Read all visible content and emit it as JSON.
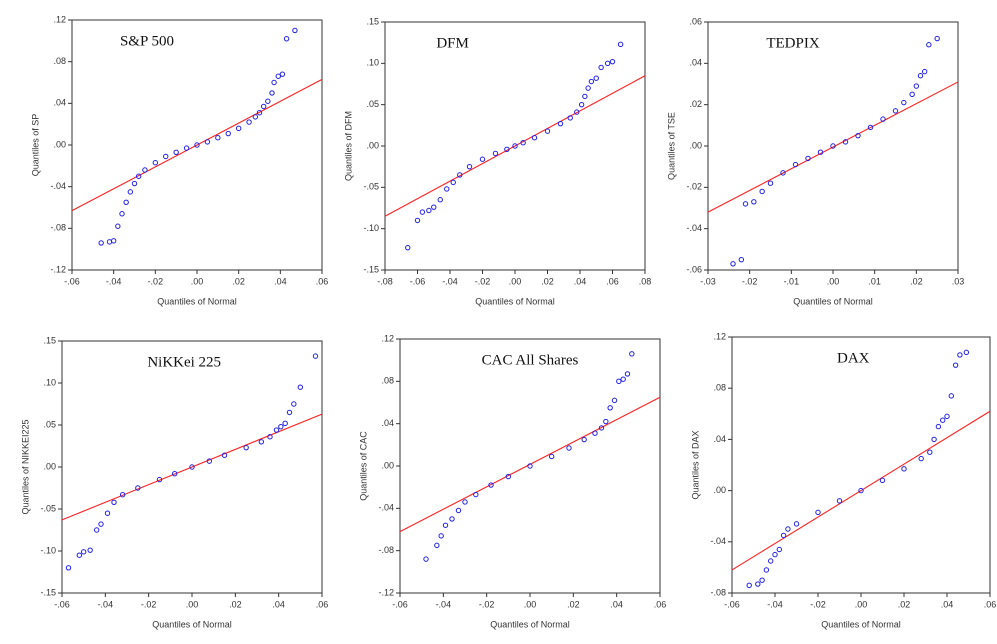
{
  "chart_data": [
    {
      "type": "scatter",
      "title": "S&P 500",
      "xlabel": "Quantiles of Normal",
      "ylabel": "Quantiles of SP",
      "color": "#2020e8",
      "x": [
        -0.046,
        -0.042,
        -0.04,
        -0.038,
        -0.036,
        -0.034,
        -0.032,
        -0.03,
        -0.028,
        -0.025,
        -0.02,
        -0.015,
        -0.01,
        -0.005,
        0,
        0.005,
        0.01,
        0.015,
        0.02,
        0.025,
        0.028,
        0.03,
        0.032,
        0.034,
        0.036,
        0.037,
        0.039,
        0.041,
        0.043,
        0.047
      ],
      "y": [
        -0.094,
        -0.093,
        -0.092,
        -0.078,
        -0.066,
        -0.055,
        -0.045,
        -0.037,
        -0.03,
        -0.024,
        -0.017,
        -0.011,
        -0.007,
        -0.003,
        0,
        0.003,
        0.007,
        0.011,
        0.016,
        0.022,
        0.027,
        0.031,
        0.037,
        0.042,
        0.05,
        0.06,
        0.066,
        0.068,
        0.102,
        0.11
      ],
      "reference_line": {
        "x": [
          -0.06,
          0.06
        ],
        "y": [
          -0.063,
          0.063
        ],
        "color": "#ff2020"
      },
      "xlim": [
        -0.06,
        0.06
      ],
      "ylim": [
        -0.12,
        0.12
      ],
      "xticks": [
        {
          "value": -0.06,
          "label": "-.06"
        },
        {
          "value": -0.04,
          "label": "-.04"
        },
        {
          "value": -0.02,
          "label": "-.02"
        },
        {
          "value": 0,
          "label": ".00"
        },
        {
          "value": 0.02,
          "label": ".02"
        },
        {
          "value": 0.04,
          "label": ".04"
        },
        {
          "value": 0.06,
          "label": ".06"
        }
      ],
      "yticks": [
        {
          "value": -0.12,
          "label": "-.12"
        },
        {
          "value": -0.08,
          "label": "-.08"
        },
        {
          "value": -0.04,
          "label": "-.04"
        },
        {
          "value": 0,
          "label": ".00"
        },
        {
          "value": 0.04,
          "label": ".04"
        },
        {
          "value": 0.08,
          "label": ".08"
        },
        {
          "value": 0.12,
          "label": ".12"
        }
      ]
    },
    {
      "type": "scatter",
      "title": "DFM",
      "xlabel": "Quantiles of Normal",
      "ylabel": "Quantiles of DFM",
      "color": "#2020e8",
      "x": [
        -0.066,
        -0.06,
        -0.057,
        -0.053,
        -0.05,
        -0.046,
        -0.042,
        -0.038,
        -0.034,
        -0.028,
        -0.02,
        -0.012,
        -0.005,
        0,
        0.005,
        0.012,
        0.02,
        0.028,
        0.034,
        0.038,
        0.041,
        0.043,
        0.045,
        0.047,
        0.05,
        0.053,
        0.057,
        0.06,
        0.065
      ],
      "y": [
        -0.123,
        -0.09,
        -0.08,
        -0.078,
        -0.074,
        -0.065,
        -0.052,
        -0.044,
        -0.035,
        -0.025,
        -0.016,
        -0.009,
        -0.004,
        0,
        0.004,
        0.01,
        0.018,
        0.027,
        0.034,
        0.041,
        0.05,
        0.06,
        0.07,
        0.078,
        0.082,
        0.095,
        0.1,
        0.102,
        0.123
      ],
      "reference_line": {
        "x": [
          -0.08,
          0.08
        ],
        "y": [
          -0.085,
          0.085
        ],
        "color": "#ff2020"
      },
      "xlim": [
        -0.08,
        0.08
      ],
      "ylim": [
        -0.15,
        0.15
      ],
      "xticks": [
        {
          "value": -0.08,
          "label": "-.08"
        },
        {
          "value": -0.06,
          "label": "-.06"
        },
        {
          "value": -0.04,
          "label": "-.04"
        },
        {
          "value": -0.02,
          "label": "-.02"
        },
        {
          "value": 0,
          "label": ".00"
        },
        {
          "value": 0.02,
          "label": ".02"
        },
        {
          "value": 0.04,
          "label": ".04"
        },
        {
          "value": 0.06,
          "label": ".06"
        },
        {
          "value": 0.08,
          "label": ".08"
        }
      ],
      "yticks": [
        {
          "value": -0.15,
          "label": "-.15"
        },
        {
          "value": -0.1,
          "label": "-.10"
        },
        {
          "value": -0.05,
          "label": "-.05"
        },
        {
          "value": 0,
          "label": ".00"
        },
        {
          "value": 0.05,
          "label": ".05"
        },
        {
          "value": 0.1,
          "label": ".10"
        },
        {
          "value": 0.15,
          "label": ".15"
        }
      ]
    },
    {
      "type": "scatter",
      "title": "TEDPIX",
      "xlabel": "Quantiles of Normal",
      "ylabel": "Quantiles of TSE",
      "color": "#2020e8",
      "x": [
        -0.024,
        -0.022,
        -0.021,
        -0.019,
        -0.017,
        -0.015,
        -0.012,
        -0.009,
        -0.006,
        -0.003,
        0,
        0.003,
        0.006,
        0.009,
        0.012,
        0.015,
        0.017,
        0.019,
        0.02,
        0.021,
        0.022,
        0.023,
        0.025
      ],
      "y": [
        -0.057,
        -0.055,
        -0.028,
        -0.027,
        -0.022,
        -0.018,
        -0.013,
        -0.009,
        -0.006,
        -0.003,
        0,
        0.002,
        0.005,
        0.009,
        0.013,
        0.017,
        0.021,
        0.025,
        0.029,
        0.034,
        0.036,
        0.049,
        0.052
      ],
      "reference_line": {
        "x": [
          -0.03,
          0.03
        ],
        "y": [
          -0.032,
          0.031
        ],
        "color": "#ff2020"
      },
      "xlim": [
        -0.03,
        0.03
      ],
      "ylim": [
        -0.06,
        0.06
      ],
      "xticks": [
        {
          "value": -0.03,
          "label": "-.03"
        },
        {
          "value": -0.02,
          "label": "-.02"
        },
        {
          "value": -0.01,
          "label": "-.01"
        },
        {
          "value": 0,
          "label": ".00"
        },
        {
          "value": 0.01,
          "label": ".01"
        },
        {
          "value": 0.02,
          "label": ".02"
        },
        {
          "value": 0.03,
          "label": ".03"
        }
      ],
      "yticks": [
        {
          "value": -0.06,
          "label": "-.06"
        },
        {
          "value": -0.04,
          "label": "-.04"
        },
        {
          "value": -0.02,
          "label": "-.02"
        },
        {
          "value": 0,
          "label": ".00"
        },
        {
          "value": 0.02,
          "label": ".02"
        },
        {
          "value": 0.04,
          "label": ".04"
        },
        {
          "value": 0.06,
          "label": ".06"
        }
      ]
    },
    {
      "type": "scatter",
      "title": "NiKKei 225",
      "xlabel": "Quantiles of Normal",
      "ylabel": "Quantiles of NIKKEI225",
      "color": "#2020e8",
      "x": [
        -0.057,
        -0.052,
        -0.05,
        -0.047,
        -0.044,
        -0.042,
        -0.039,
        -0.036,
        -0.032,
        -0.025,
        -0.015,
        -0.008,
        0,
        0.008,
        0.015,
        0.025,
        0.032,
        0.036,
        0.039,
        0.041,
        0.043,
        0.045,
        0.047,
        0.05,
        0.057
      ],
      "y": [
        -0.12,
        -0.105,
        -0.101,
        -0.099,
        -0.075,
        -0.068,
        -0.055,
        -0.042,
        -0.033,
        -0.025,
        -0.015,
        -0.008,
        0,
        0.007,
        0.014,
        0.023,
        0.03,
        0.036,
        0.044,
        0.048,
        0.052,
        0.065,
        0.075,
        0.095,
        0.132
      ],
      "reference_line": {
        "x": [
          -0.06,
          0.06
        ],
        "y": [
          -0.063,
          0.063
        ],
        "color": "#ff2020"
      },
      "xlim": [
        -0.06,
        0.06
      ],
      "ylim": [
        -0.15,
        0.15
      ],
      "xticks": [
        {
          "value": -0.06,
          "label": "-.06"
        },
        {
          "value": -0.04,
          "label": "-.04"
        },
        {
          "value": -0.02,
          "label": "-.02"
        },
        {
          "value": 0,
          "label": ".00"
        },
        {
          "value": 0.02,
          "label": ".02"
        },
        {
          "value": 0.04,
          "label": ".04"
        },
        {
          "value": 0.06,
          "label": ".06"
        }
      ],
      "yticks": [
        {
          "value": -0.15,
          "label": "-.15"
        },
        {
          "value": -0.1,
          "label": "-.10"
        },
        {
          "value": -0.05,
          "label": "-.05"
        },
        {
          "value": 0,
          "label": ".00"
        },
        {
          "value": 0.05,
          "label": ".05"
        },
        {
          "value": 0.1,
          "label": ".10"
        },
        {
          "value": 0.15,
          "label": ".15"
        }
      ]
    },
    {
      "type": "scatter",
      "title": "CAC All Shares",
      "xlabel": "Quantiles of Normal",
      "ylabel": "Quantiles of CAC",
      "color": "#2020e8",
      "x": [
        -0.048,
        -0.043,
        -0.041,
        -0.039,
        -0.036,
        -0.033,
        -0.03,
        -0.025,
        -0.018,
        -0.01,
        0,
        0.01,
        0.018,
        0.025,
        0.03,
        0.033,
        0.035,
        0.037,
        0.039,
        0.041,
        0.043,
        0.045,
        0.047
      ],
      "y": [
        -0.088,
        -0.075,
        -0.066,
        -0.056,
        -0.05,
        -0.042,
        -0.034,
        -0.027,
        -0.018,
        -0.01,
        0,
        0.009,
        0.017,
        0.025,
        0.031,
        0.036,
        0.042,
        0.055,
        0.062,
        0.08,
        0.082,
        0.087,
        0.106
      ],
      "reference_line": {
        "x": [
          -0.06,
          0.06
        ],
        "y": [
          -0.062,
          0.065
        ],
        "color": "#ff2020"
      },
      "xlim": [
        -0.06,
        0.06
      ],
      "ylim": [
        -0.12,
        0.12
      ],
      "xticks": [
        {
          "value": -0.06,
          "label": "-.06"
        },
        {
          "value": -0.04,
          "label": "-.04"
        },
        {
          "value": -0.02,
          "label": "-.02"
        },
        {
          "value": 0,
          "label": ".00"
        },
        {
          "value": 0.02,
          "label": ".02"
        },
        {
          "value": 0.04,
          "label": ".04"
        },
        {
          "value": 0.06,
          "label": ".06"
        }
      ],
      "yticks": [
        {
          "value": -0.12,
          "label": "-.12"
        },
        {
          "value": -0.08,
          "label": "-.08"
        },
        {
          "value": -0.04,
          "label": "-.04"
        },
        {
          "value": 0,
          "label": ".00"
        },
        {
          "value": 0.04,
          "label": ".04"
        },
        {
          "value": 0.08,
          "label": ".08"
        },
        {
          "value": 0.12,
          "label": ".12"
        }
      ]
    },
    {
      "type": "scatter",
      "title": "DAX",
      "xlabel": "Quantiles of Normal",
      "ylabel": "Quantiles of DAX",
      "color": "#2020e8",
      "x": [
        -0.052,
        -0.048,
        -0.046,
        -0.044,
        -0.042,
        -0.04,
        -0.038,
        -0.036,
        -0.034,
        -0.03,
        -0.02,
        -0.01,
        0,
        0.01,
        0.02,
        0.028,
        0.032,
        0.034,
        0.036,
        0.038,
        0.04,
        0.042,
        0.044,
        0.046,
        0.049
      ],
      "y": [
        -0.074,
        -0.073,
        -0.07,
        -0.062,
        -0.055,
        -0.05,
        -0.046,
        -0.035,
        -0.03,
        -0.026,
        -0.017,
        -0.008,
        0,
        0.008,
        0.017,
        0.025,
        0.03,
        0.04,
        0.05,
        0.055,
        0.058,
        0.074,
        0.098,
        0.106,
        0.108
      ],
      "reference_line": {
        "x": [
          -0.06,
          0.06
        ],
        "y": [
          -0.062,
          0.062
        ],
        "color": "#ff2020"
      },
      "xlim": [
        -0.06,
        0.06
      ],
      "ylim": [
        -0.08,
        0.12
      ],
      "xticks": [
        {
          "value": -0.06,
          "label": "-.06"
        },
        {
          "value": -0.04,
          "label": "-.04"
        },
        {
          "value": -0.02,
          "label": "-.02"
        },
        {
          "value": 0,
          "label": ".00"
        },
        {
          "value": 0.02,
          "label": ".02"
        },
        {
          "value": 0.04,
          "label": ".04"
        },
        {
          "value": 0.06,
          "label": ".06"
        }
      ],
      "yticks": [
        {
          "value": -0.08,
          "label": "-.08"
        },
        {
          "value": -0.04,
          "label": "-.04"
        },
        {
          "value": 0,
          "label": ".00"
        },
        {
          "value": 0.04,
          "label": ".04"
        },
        {
          "value": 0.08,
          "label": ".08"
        },
        {
          "value": 0.12,
          "label": ".12"
        }
      ]
    }
  ]
}
